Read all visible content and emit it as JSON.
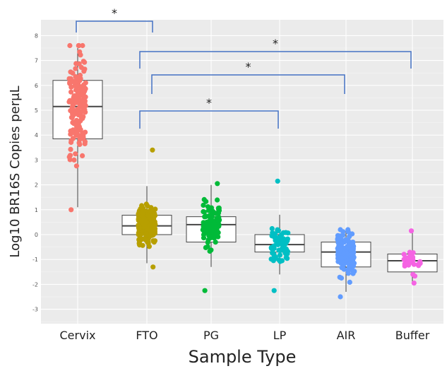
{
  "chart_data": {
    "type": "box",
    "xlabel": "Sample Type",
    "ylabel": "Log10 BR16S Copies perμL",
    "ylim": [
      -3.6,
      8.6
    ],
    "yticks": [
      8,
      7,
      6,
      5,
      4,
      3,
      2,
      1,
      0,
      -1,
      -2,
      -3
    ],
    "ytick_labels": [
      "8",
      "7",
      "6",
      "5",
      "4",
      "3",
      "2",
      "1",
      "0",
      "-1",
      "-2",
      "-3"
    ],
    "grid": true,
    "legend": "none",
    "categories": [
      "Cervix",
      "FTO",
      "PG",
      "LP",
      "AIR",
      "Buffer"
    ],
    "series": [
      {
        "name": "Cervix",
        "color": "#f8766d",
        "q1": 3.85,
        "median": 5.15,
        "q3": 6.2,
        "whisker_low": 1.1,
        "whisker_high": 7.5,
        "points_min": 1.0,
        "points_max": 7.6,
        "n": 160
      },
      {
        "name": "FTO",
        "color": "#b79f00",
        "q1": 0.0,
        "median": 0.35,
        "q3": 0.78,
        "whisker_low": -1.15,
        "whisker_high": 1.95,
        "points_min": -1.3,
        "points_max": 3.4,
        "n": 280
      },
      {
        "name": "PG",
        "color": "#00ba38",
        "q1": -0.3,
        "median": 0.4,
        "q3": 0.72,
        "whisker_low": -1.3,
        "whisker_high": 2.0,
        "points_min": -2.25,
        "points_max": 2.05,
        "n": 100
      },
      {
        "name": "LP",
        "color": "#00bfc4",
        "q1": -0.7,
        "median": -0.4,
        "q3": 0.0,
        "whisker_low": -1.6,
        "whisker_high": 0.8,
        "points_min": -2.25,
        "points_max": 2.15,
        "n": 75
      },
      {
        "name": "AIR",
        "color": "#619cff",
        "q1": -1.3,
        "median": -0.7,
        "q3": -0.3,
        "whisker_low": -2.3,
        "whisker_high": 0.2,
        "points_min": -2.5,
        "points_max": 0.2,
        "n": 150
      },
      {
        "name": "Buffer",
        "color": "#f564e3",
        "q1": -1.5,
        "median": -1.05,
        "q3": -0.78,
        "whisker_low": -1.95,
        "whisker_high": 0.1,
        "points_min": -1.95,
        "points_max": 0.15,
        "n": 30
      }
    ],
    "annotations": [
      {
        "from": "Cervix",
        "to": "FTO",
        "label": "*"
      },
      {
        "from": "FTO",
        "to": "Buffer",
        "label": "*"
      },
      {
        "from": "FTO",
        "to": "AIR",
        "label": "*"
      },
      {
        "from": "FTO",
        "to": "LP",
        "label": "*"
      }
    ],
    "annotation_color": "#4472c4"
  }
}
